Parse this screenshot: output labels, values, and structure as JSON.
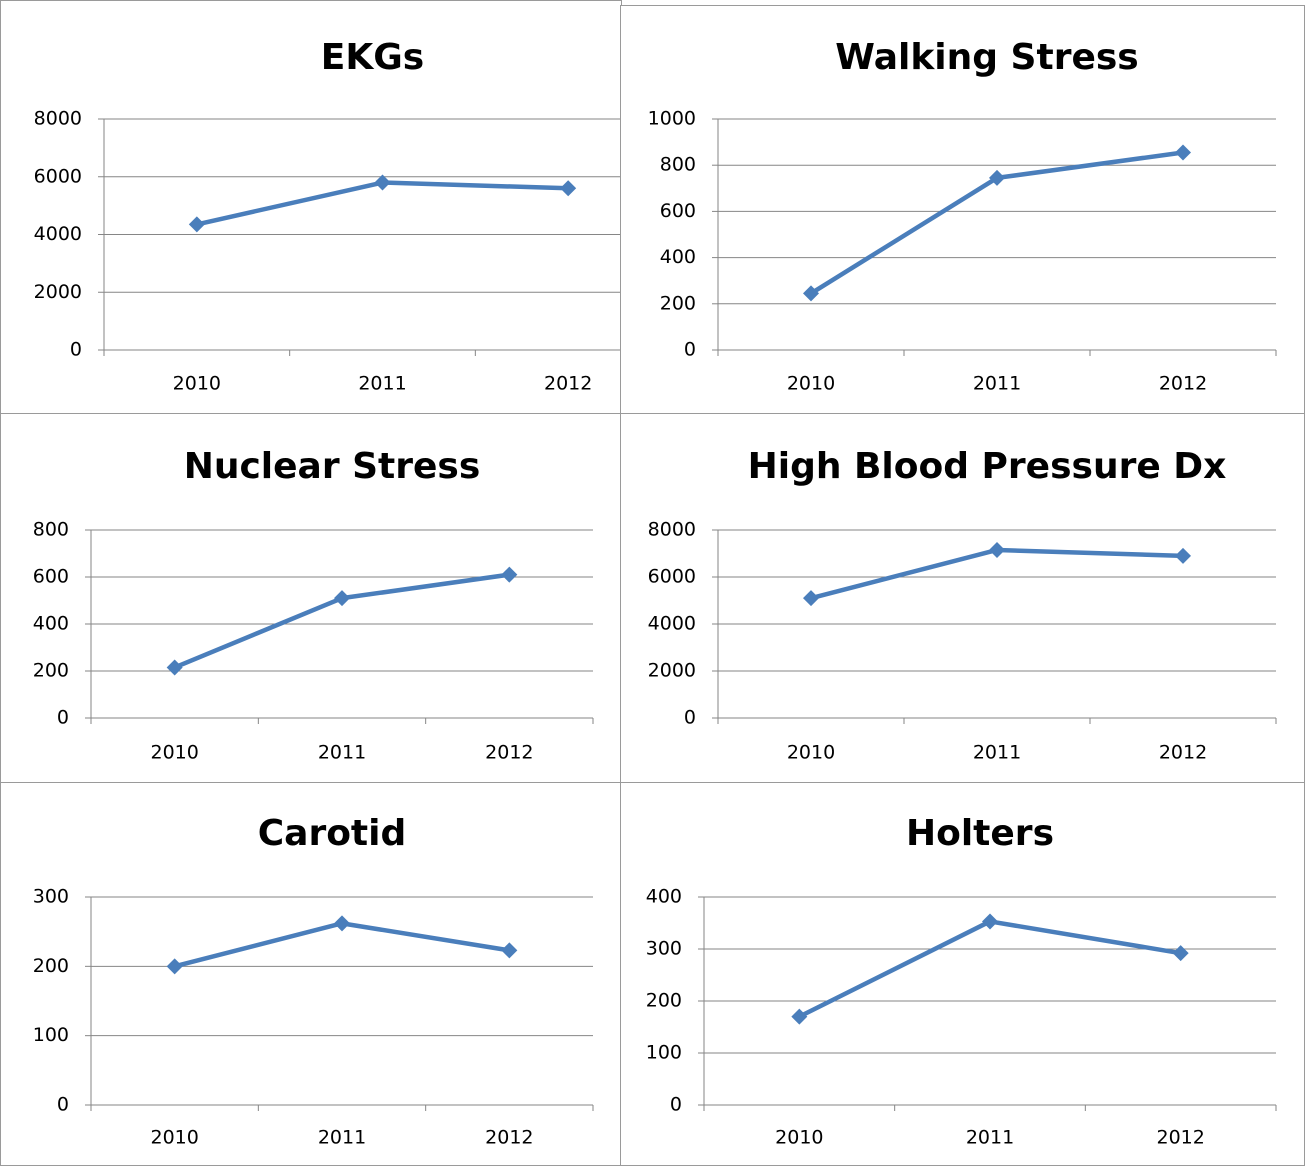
{
  "chart_data": [
    {
      "type": "line",
      "title": "EKGs",
      "categories": [
        "2010",
        "2011",
        "2012"
      ],
      "series": [
        {
          "name": "EKGs",
          "color": "#4a7ebb",
          "values": [
            4350,
            5800,
            5600
          ]
        }
      ],
      "ylim": [
        0,
        8000
      ],
      "yticks": [
        0,
        2000,
        4000,
        6000,
        8000
      ],
      "grid": true
    },
    {
      "type": "line",
      "title": "Walking Stress",
      "categories": [
        "2010",
        "2011",
        "2012"
      ],
      "series": [
        {
          "name": "Walking Stress",
          "color": "#4a7ebb",
          "values": [
            245,
            745,
            855
          ]
        }
      ],
      "ylim": [
        0,
        1000
      ],
      "yticks": [
        0,
        200,
        400,
        600,
        800,
        1000
      ],
      "grid": true
    },
    {
      "type": "line",
      "title": "Nuclear Stress",
      "categories": [
        "2010",
        "2011",
        "2012"
      ],
      "series": [
        {
          "name": "Nuclear Stress",
          "color": "#4a7ebb",
          "values": [
            215,
            510,
            610
          ]
        }
      ],
      "ylim": [
        0,
        800
      ],
      "yticks": [
        0,
        200,
        400,
        600,
        800
      ],
      "grid": true
    },
    {
      "type": "line",
      "title": "High Blood Pressure Dx",
      "categories": [
        "2010",
        "2011",
        "2012"
      ],
      "series": [
        {
          "name": "High Blood Pressure Dx",
          "color": "#4a7ebb",
          "values": [
            5100,
            7150,
            6900
          ]
        }
      ],
      "ylim": [
        0,
        8000
      ],
      "yticks": [
        0,
        2000,
        4000,
        6000,
        8000
      ],
      "grid": true
    },
    {
      "type": "line",
      "title": "Carotid",
      "categories": [
        "2010",
        "2011",
        "2012"
      ],
      "series": [
        {
          "name": "Carotid",
          "color": "#4a7ebb",
          "values": [
            200,
            262,
            223
          ]
        }
      ],
      "ylim": [
        0,
        300
      ],
      "yticks": [
        0,
        100,
        200,
        300
      ],
      "grid": true
    },
    {
      "type": "line",
      "title": "Holters",
      "categories": [
        "2010",
        "2011",
        "2012"
      ],
      "series": [
        {
          "name": "Holters",
          "color": "#4a7ebb",
          "values": [
            170,
            353,
            292
          ]
        }
      ],
      "ylim": [
        0,
        400
      ],
      "yticks": [
        0,
        100,
        200,
        300,
        400
      ],
      "grid": true
    }
  ]
}
